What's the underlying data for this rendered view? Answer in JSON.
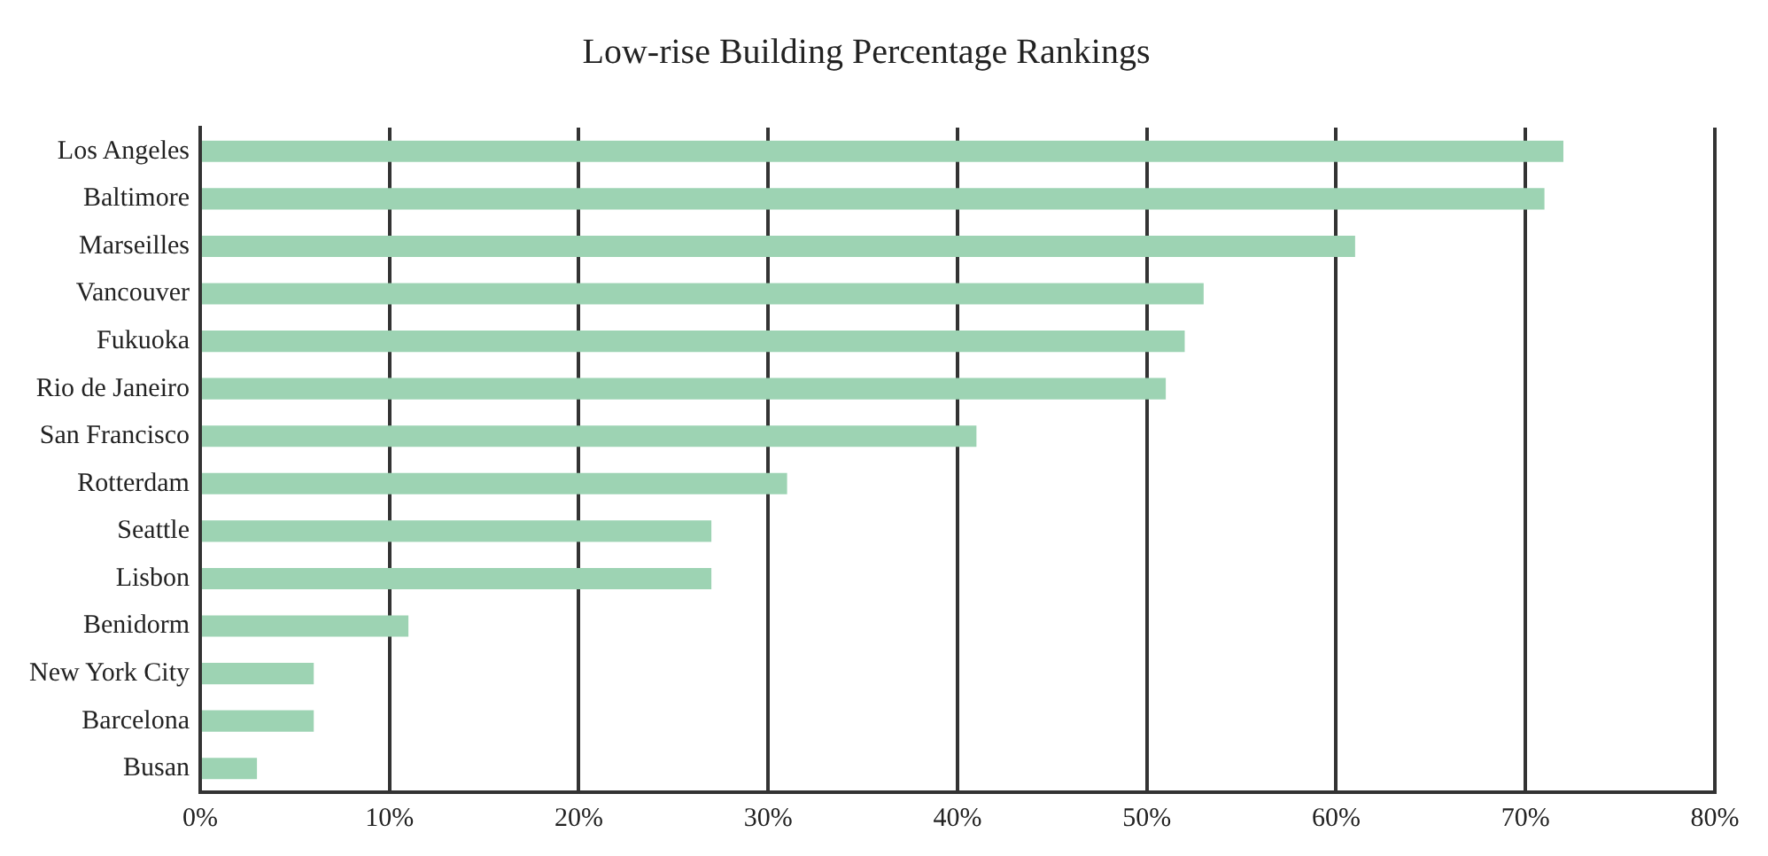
{
  "chart_data": {
    "type": "bar",
    "orientation": "horizontal",
    "title": "Low-rise Building Percentage Rankings",
    "categories": [
      "Los Angeles",
      "Baltimore",
      "Marseilles",
      "Vancouver",
      "Fukuoka",
      "Rio de Janeiro",
      "San Francisco",
      "Rotterdam",
      "Seattle",
      "Lisbon",
      "Benidorm",
      "New York City",
      "Barcelona",
      "Busan"
    ],
    "values": [
      72,
      71,
      61,
      53,
      52,
      51,
      41,
      31,
      27,
      27,
      11,
      6,
      6,
      3
    ],
    "color": "#9dd3b3",
    "xlim": [
      0,
      80
    ],
    "xticks": [
      {
        "value": 0,
        "label": "0%"
      },
      {
        "value": 10,
        "label": "10%"
      },
      {
        "value": 20,
        "label": "20%"
      },
      {
        "value": 30,
        "label": "30%"
      },
      {
        "value": 40,
        "label": "40%"
      },
      {
        "value": 50,
        "label": "50%"
      },
      {
        "value": 60,
        "label": "60%"
      },
      {
        "value": 70,
        "label": "70%"
      },
      {
        "value": 80,
        "label": "80%"
      }
    ],
    "grid": "x",
    "legend": false
  }
}
